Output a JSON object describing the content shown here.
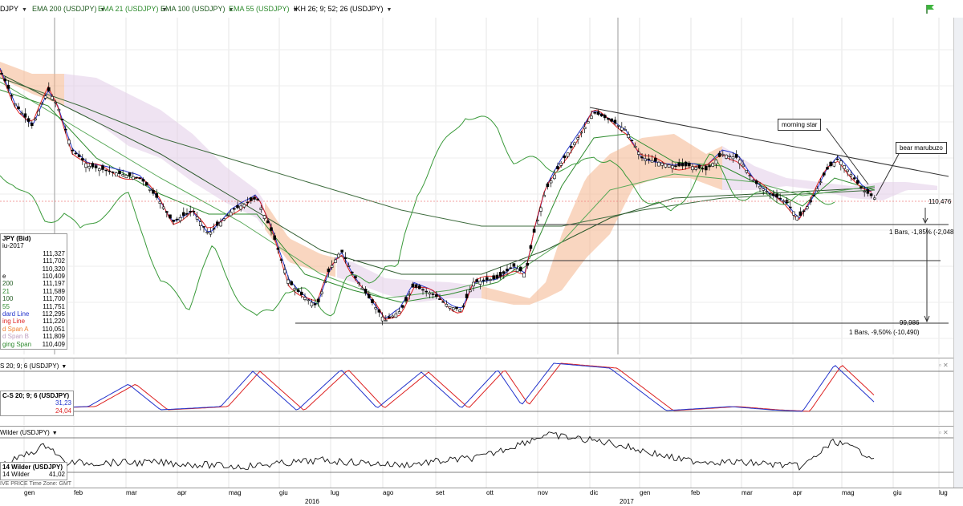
{
  "toolbar": {
    "items": [
      "DJPY",
      "EMA 200 (USDJPY)",
      "EMA 21 (USDJPY)",
      "EMA 100 (USDJPY)",
      "EMA 55 (USDJPY)",
      "IKH 26; 9; 52; 26 (USDJPY)"
    ],
    "colors": [
      "#000000",
      "#1f5a1f",
      "#2e8b2e",
      "#1f5a1f",
      "#2e8b2e",
      "#000000"
    ],
    "dropdown_icon": "triangle-down-icon",
    "flag_icon": "green-flag-icon"
  },
  "main_legend": {
    "title": "JPY (Bid)",
    "date": "iu-2017",
    "rows": [
      {
        "label": "",
        "value": "111,327"
      },
      {
        "label": "",
        "value": "111,702"
      },
      {
        "label": "",
        "value": "110,320"
      },
      {
        "label": "e",
        "value": "110,409"
      },
      {
        "label": "200",
        "value": "111,197"
      },
      {
        "label": "21",
        "value": "111,589"
      },
      {
        "label": "100",
        "value": "111,700"
      },
      {
        "label": "55",
        "value": "111,751"
      },
      {
        "label": "dard Line",
        "value": "112,295"
      },
      {
        "label": "ing Line",
        "value": "111,220"
      },
      {
        "label": "d Span A",
        "value": "110,051"
      },
      {
        "label": "d Span B",
        "value": "111,809"
      },
      {
        "label": "ging Span",
        "value": "110,409"
      }
    ],
    "row_colors": [
      "#000",
      "#000",
      "#000",
      "#000",
      "#1f5a1f",
      "#2e8b2e",
      "#1f5a1f",
      "#2e8b2e",
      "#2233cc",
      "#dd2222",
      "#f08030",
      "#c0a0c0",
      "#2e8b2e"
    ]
  },
  "annotations": {
    "morning_star": "morning star",
    "bear_marubuzo": "bear marubuzo",
    "price_label": "110,476",
    "bars_short": "1 Bars, -1,85% (-2,048)",
    "price_low": "99,986",
    "bars_long": "1 Bars, -9,50% (-10,490)"
  },
  "stoch_panel": {
    "title": "S 20; 9; 6 (USDJPY)",
    "legend_title": "C-S 20; 9; 6 (USDJPY)",
    "value1": "31,23",
    "value2": "24,04"
  },
  "wilder_panel": {
    "title": "Wilder (USDJPY)",
    "legend_title": "14 Wilder (USDJPY)",
    "legend_label": "14 Wilder",
    "value": "41,02"
  },
  "footer": "IVE PRICE  Time Zone: GMT",
  "time_axis": {
    "months": [
      "gen",
      "feb",
      "mar",
      "apr",
      "mag",
      "giu",
      "lug",
      "ago",
      "set",
      "ott",
      "nov",
      "dic",
      "gen",
      "feb",
      "mar",
      "apr",
      "mag",
      "giu",
      "lug"
    ],
    "years": [
      "2016",
      "2017"
    ]
  },
  "chart_data": {
    "type": "candlestick",
    "instrument": "USDJPY",
    "levels": [
      110.476,
      99.986
    ],
    "ylim": [
      99,
      124
    ]
  }
}
